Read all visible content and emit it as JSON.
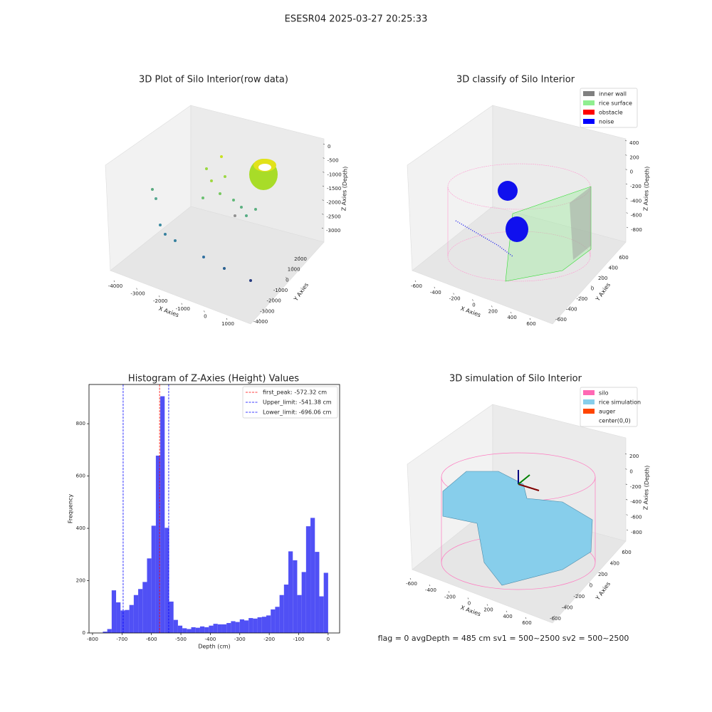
{
  "title": "ESESR04 2025-03-27 20:25:33",
  "footer": "flag = 0     avgDepth = 485 cm  sv1 = 500~2500  sv2 = 500~2500",
  "chart_data": [
    {
      "type": "scatter3d",
      "title": "3D Plot of Silo Interior(row data)",
      "xlabel": "X Axies",
      "ylabel": "Y Axies",
      "zlabel": "Z Axies (Depth)",
      "xticks": [
        -4000,
        -3000,
        -2000,
        -1000,
        0,
        1000
      ],
      "yticks": [
        -4000,
        -3000,
        -2000,
        -1000,
        0,
        1000,
        2000
      ],
      "zticks": [
        -3000,
        -2500,
        -2000,
        -1500,
        -1000,
        -500,
        0
      ]
    },
    {
      "type": "scatter3d",
      "title": "3D classify of Silo Interior",
      "xlabel": "X Axies",
      "ylabel": "Y Axies",
      "zlabel": "Z Axies (Depth)",
      "xticks": [
        -600,
        -400,
        -200,
        0,
        200,
        400,
        600
      ],
      "yticks": [
        -600,
        -400,
        -200,
        0,
        200,
        400,
        600
      ],
      "zticks": [
        -800,
        -600,
        -400,
        -200,
        0,
        200,
        400
      ],
      "legend": [
        {
          "name": "inner wall",
          "color": "#808080"
        },
        {
          "name": "rice surface",
          "color": "#90ee90"
        },
        {
          "name": "obstacle",
          "color": "#ff0000"
        },
        {
          "name": "noise",
          "color": "#0000ff"
        }
      ]
    },
    {
      "type": "histogram",
      "title": "Histogram of Z-Axies (Height) Values",
      "xlabel": "Depth (cm)",
      "ylabel": "Frequency",
      "color": "#5050f5",
      "bins": [
        -765,
        -750,
        -735,
        -720,
        -705,
        -690,
        -675,
        -660,
        -645,
        -630,
        -615,
        -600,
        -585,
        -570,
        -555,
        -540,
        -525,
        -510,
        -495,
        -480,
        -465,
        -450,
        -435,
        -420,
        -405,
        -390,
        -375,
        -360,
        -345,
        -330,
        -315,
        -300,
        -285,
        -270,
        -255,
        -240,
        -225,
        -210,
        -195,
        -180,
        -165,
        -150,
        -135,
        -120,
        -105,
        -90,
        -75,
        -60,
        -45,
        -30,
        -15,
        0
      ],
      "values": [
        5,
        15,
        163,
        117,
        86,
        88,
        107,
        145,
        168,
        195,
        285,
        410,
        678,
        905,
        402,
        120,
        50,
        28,
        18,
        15,
        22,
        20,
        25,
        22,
        28,
        35,
        33,
        33,
        38,
        45,
        42,
        52,
        48,
        57,
        55,
        60,
        62,
        67,
        90,
        100,
        145,
        185,
        312,
        278,
        145,
        233,
        408,
        440,
        310,
        140,
        230
      ],
      "lines": [
        {
          "name": "first_peak: -572.32 cm",
          "value": -572.32,
          "color": "#ff0000"
        },
        {
          "name": "Upper_limit: -541.38 cm",
          "value": -541.38,
          "color": "#0000ff"
        },
        {
          "name": "Lower_limit: -696.06 cm",
          "value": -696.06,
          "color": "#0000ff"
        }
      ],
      "xlim": [
        -812,
        39
      ],
      "ylim": [
        0,
        950
      ],
      "xticks": [
        -800,
        -700,
        -600,
        -500,
        -400,
        -300,
        -200,
        -100,
        0
      ],
      "yticks": [
        0,
        200,
        400,
        600,
        800
      ]
    },
    {
      "type": "surface3d",
      "title": "3D simulation of Silo Interior",
      "xlabel": "X Axies",
      "ylabel": "Y Axies",
      "zlabel": "Z Axies (Depth)",
      "xticks": [
        -600,
        -400,
        -200,
        0,
        200,
        400,
        600
      ],
      "yticks": [
        -600,
        -400,
        -200,
        0,
        200,
        400,
        600
      ],
      "zticks": [
        -800,
        -600,
        -400,
        -200,
        0,
        200
      ],
      "legend": [
        {
          "name": "silo",
          "color": "#ff69b4"
        },
        {
          "name": "rice simulation",
          "color": "#87ceeb"
        },
        {
          "name": "auger",
          "color": "#ff4500"
        },
        {
          "name": "center(0,0)",
          "color": "#ffffff"
        }
      ]
    }
  ]
}
